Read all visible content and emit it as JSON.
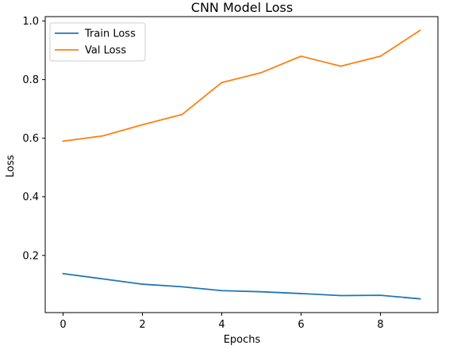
{
  "chart_data": {
    "type": "line",
    "title": "CNN Model Loss",
    "xlabel": "Epochs",
    "ylabel": "Loss",
    "x": [
      0,
      1,
      2,
      3,
      4,
      5,
      6,
      7,
      8,
      9
    ],
    "xlim": [
      -0.45,
      9.45
    ],
    "ylim": [
      0.005,
      1.015
    ],
    "xticks": [
      0,
      2,
      4,
      6,
      8
    ],
    "yticks": [
      0.2,
      0.4,
      0.6,
      0.8,
      1.0
    ],
    "ytick_labels": [
      "0.2",
      "0.4",
      "0.6",
      "0.8",
      "1.0"
    ],
    "grid": false,
    "legend_position": "upper-left",
    "series": [
      {
        "name": "Train Loss",
        "color": "#1f77b4",
        "values": [
          0.138,
          0.12,
          0.102,
          0.093,
          0.08,
          0.076,
          0.07,
          0.063,
          0.064,
          0.052
        ]
      },
      {
        "name": "Val Loss",
        "color": "#ff7f0e",
        "values": [
          0.59,
          0.608,
          0.646,
          0.681,
          0.79,
          0.824,
          0.88,
          0.846,
          0.88,
          0.968
        ]
      }
    ]
  }
}
